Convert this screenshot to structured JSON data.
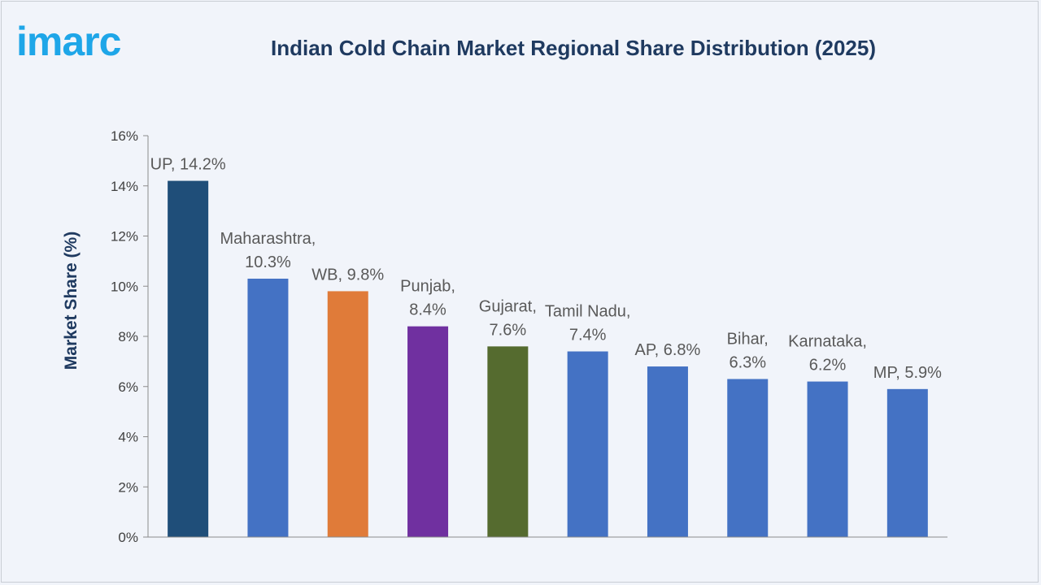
{
  "brand": {
    "logo_text": "imarc"
  },
  "chart_data": {
    "type": "bar",
    "title": "Indian Cold Chain Market Regional Share Distribution (2025)",
    "xlabel": "",
    "ylabel": "Market Share (%)",
    "ylim": [
      0,
      16
    ],
    "yticks": [
      "0%",
      "2%",
      "4%",
      "6%",
      "8%",
      "10%",
      "12%",
      "14%",
      "16%"
    ],
    "categories": [
      "UP",
      "Maharashtra",
      "WB",
      "Punjab",
      "Gujarat",
      "Tamil Nadu",
      "AP",
      "Bihar",
      "Karnataka",
      "MP"
    ],
    "values": [
      14.2,
      10.3,
      9.8,
      8.4,
      7.6,
      7.4,
      6.8,
      6.3,
      6.2,
      5.9
    ],
    "data_labels": [
      [
        "UP, 14.2%"
      ],
      [
        "Maharashtra,",
        "10.3%"
      ],
      [
        "WB, 9.8%"
      ],
      [
        "Punjab,",
        "8.4%"
      ],
      [
        "Gujarat,",
        "7.6%"
      ],
      [
        "Tamil Nadu,",
        "7.4%"
      ],
      [
        "AP, 6.8%"
      ],
      [
        "Bihar,",
        "6.3%"
      ],
      [
        "Karnataka,",
        "6.2%"
      ],
      [
        "MP, 5.9%"
      ]
    ],
    "colors": [
      "#1f4e79",
      "#4472c4",
      "#e07b39",
      "#7030a0",
      "#556b2f",
      "#4472c4",
      "#4472c4",
      "#4472c4",
      "#4472c4",
      "#4472c4"
    ],
    "grid": false,
    "legend": "none"
  }
}
